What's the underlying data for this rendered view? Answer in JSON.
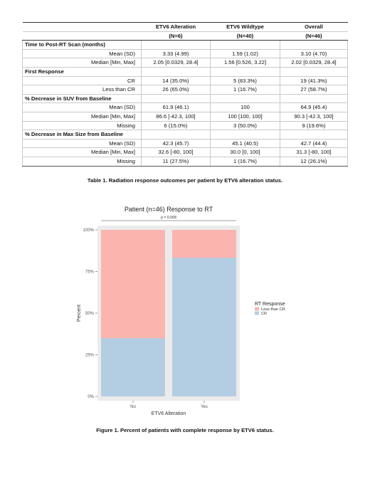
{
  "table": {
    "headers": [
      {
        "name": "",
        "n": ""
      },
      {
        "name": "ETV6 Alteration",
        "n": "(N=6)"
      },
      {
        "name": "ETV6 Wildtype",
        "n": "(N=40)"
      },
      {
        "name": "Overall",
        "n": "(N=46)"
      }
    ],
    "sections": [
      {
        "title": "Time to Post-RT Scan (months)",
        "rows": [
          {
            "label": "Mean (SD)",
            "values": [
              "3.33 (4.99)",
              "1.59 (1.02)",
              "3.10 (4.70)"
            ]
          },
          {
            "label": "Median [Min, Max]",
            "values": [
              "2.05 [0.0329, 28.4]",
              "1.56 [0.526, 3.22]",
              "2.02 [0.0329, 28.4]"
            ]
          }
        ]
      },
      {
        "title": "First Response",
        "rows": [
          {
            "label": "CR",
            "values": [
              "14 (35.0%)",
              "5 (83.3%)",
              "19 (41.3%)"
            ]
          },
          {
            "label": "Less than CR",
            "values": [
              "26 (65.0%)",
              "1 (16.7%)",
              "27 (58.7%)"
            ]
          }
        ]
      },
      {
        "title": "% Decrease in SUV from Baseline",
        "rows": [
          {
            "label": "Mean (SD)",
            "values": [
              "61.9 (46.1)",
              "100",
              "64.9 (45.4)"
            ]
          },
          {
            "label": "Median [Min, Max]",
            "values": [
              "86.6 [-42.3, 100]",
              "100 [100, 100]",
              "90.3 [-42.3, 100]"
            ]
          },
          {
            "label": "Missing",
            "values": [
              "6 (15.0%)",
              "3 (50.0%)",
              "9 (19.6%)"
            ]
          }
        ]
      },
      {
        "title": "% Decrease in Max Size from Baseline",
        "rows": [
          {
            "label": "Mean (SD)",
            "values": [
              "42.3 (45.7)",
              "45.1 (40.5)",
              "42.7 (44.4)"
            ]
          },
          {
            "label": "Median [Min, Max]",
            "values": [
              "32.6 [-80, 100]",
              "30.0 [0, 100]",
              "31.3 [-80, 100]"
            ]
          },
          {
            "label": "Missing",
            "values": [
              "11 (27.5%)",
              "1 (16.7%)",
              "12 (26.1%)"
            ]
          }
        ]
      }
    ],
    "caption": "Table 1. Radiation response outcomes per patient by ETV6 alteration status."
  },
  "chart_data": {
    "type": "bar",
    "stacked": true,
    "title": "Patient (n=46) Response to RT",
    "xlabel": "ETV6 Alteration",
    "ylabel": "Percent",
    "categories": [
      "No",
      "Yes"
    ],
    "ylim": [
      0,
      100
    ],
    "yticks": [
      0,
      25,
      50,
      75,
      100
    ],
    "ytick_labels": [
      "0%",
      "25%",
      "50%",
      "75%",
      "100%"
    ],
    "series": [
      {
        "name": "CR",
        "values": [
          35.0,
          83.3
        ],
        "color": "#b3cde3"
      },
      {
        "name": "Less than CR",
        "values": [
          65.0,
          16.7
        ],
        "color": "#fbb4ae"
      }
    ],
    "legend_title": "RT Response",
    "legend_order": [
      "Less than CR",
      "CR"
    ],
    "legend_placement": "right",
    "annotation": "p = 0.068",
    "panel_background": "#ebebeb",
    "grid": false
  },
  "figure_caption": "Figure 1. Percent of patients with complete response by ETV6 status."
}
